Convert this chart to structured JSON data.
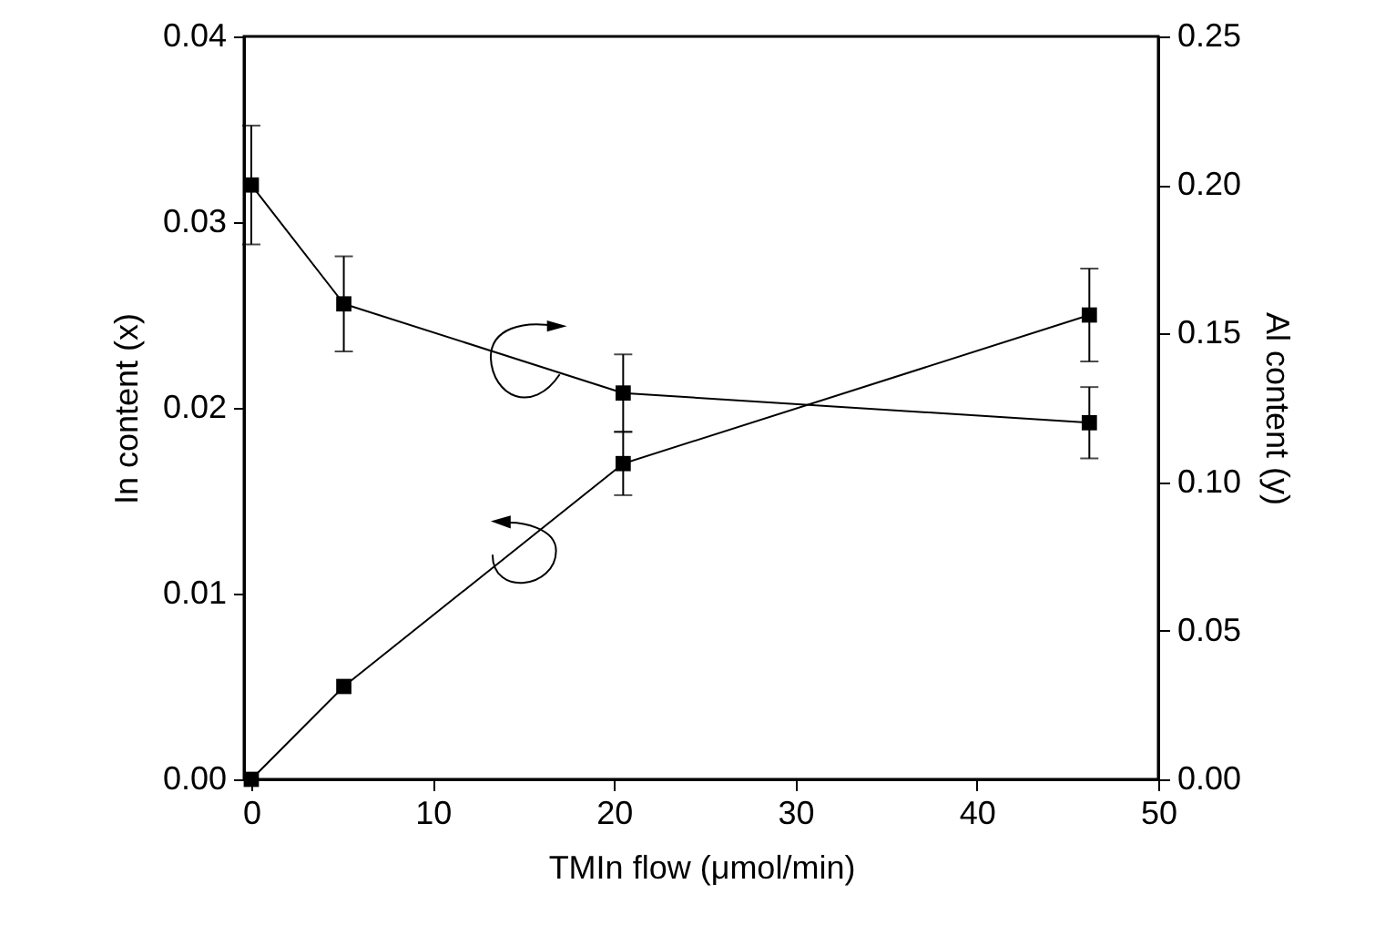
{
  "chart_data": {
    "type": "line",
    "xlabel": "TMIn flow (μmol/min)",
    "ylabel": "In content (x)",
    "y2label": "Al content (y)",
    "x": [
      0,
      5.1,
      20.5,
      46.2
    ],
    "series": [
      {
        "color": "#000000",
        "values": [
          0,
          0.005,
          0.017,
          0.025
        ],
        "errors": [
          null,
          null,
          0.0017,
          0.0025
        ]
      },
      {
        "color": "#000000",
        "axis": "y2",
        "values": [
          0.2,
          0.16,
          0.13,
          0.12
        ],
        "errors": [
          0.02,
          0.016,
          0.013,
          0.012
        ]
      }
    ],
    "xlim": [
      -0.4,
      50
    ],
    "xticks": [
      0,
      10,
      20,
      30,
      40,
      50
    ],
    "ylim": [
      0,
      0.04
    ],
    "yticks": [
      {
        "value": 0,
        "label": "0.00"
      },
      {
        "value": 0.01,
        "label": "0.01"
      },
      {
        "value": 0.02,
        "label": "0.02"
      },
      {
        "value": 0.03,
        "label": "0.03"
      },
      {
        "value": 0.04,
        "label": "0.04"
      }
    ],
    "y2lim": [
      0,
      0.25
    ],
    "y2ticks": [
      {
        "value": 0,
        "label": "0.00"
      },
      {
        "value": 0.05,
        "label": "0.05"
      },
      {
        "value": 0.1,
        "label": "0.10"
      },
      {
        "value": 0.15,
        "label": "0.15"
      },
      {
        "value": 0.2,
        "label": "0.20"
      },
      {
        "value": 0.25,
        "label": "0.25"
      }
    ],
    "grid": false,
    "marker": "square",
    "line_style": "solid"
  }
}
